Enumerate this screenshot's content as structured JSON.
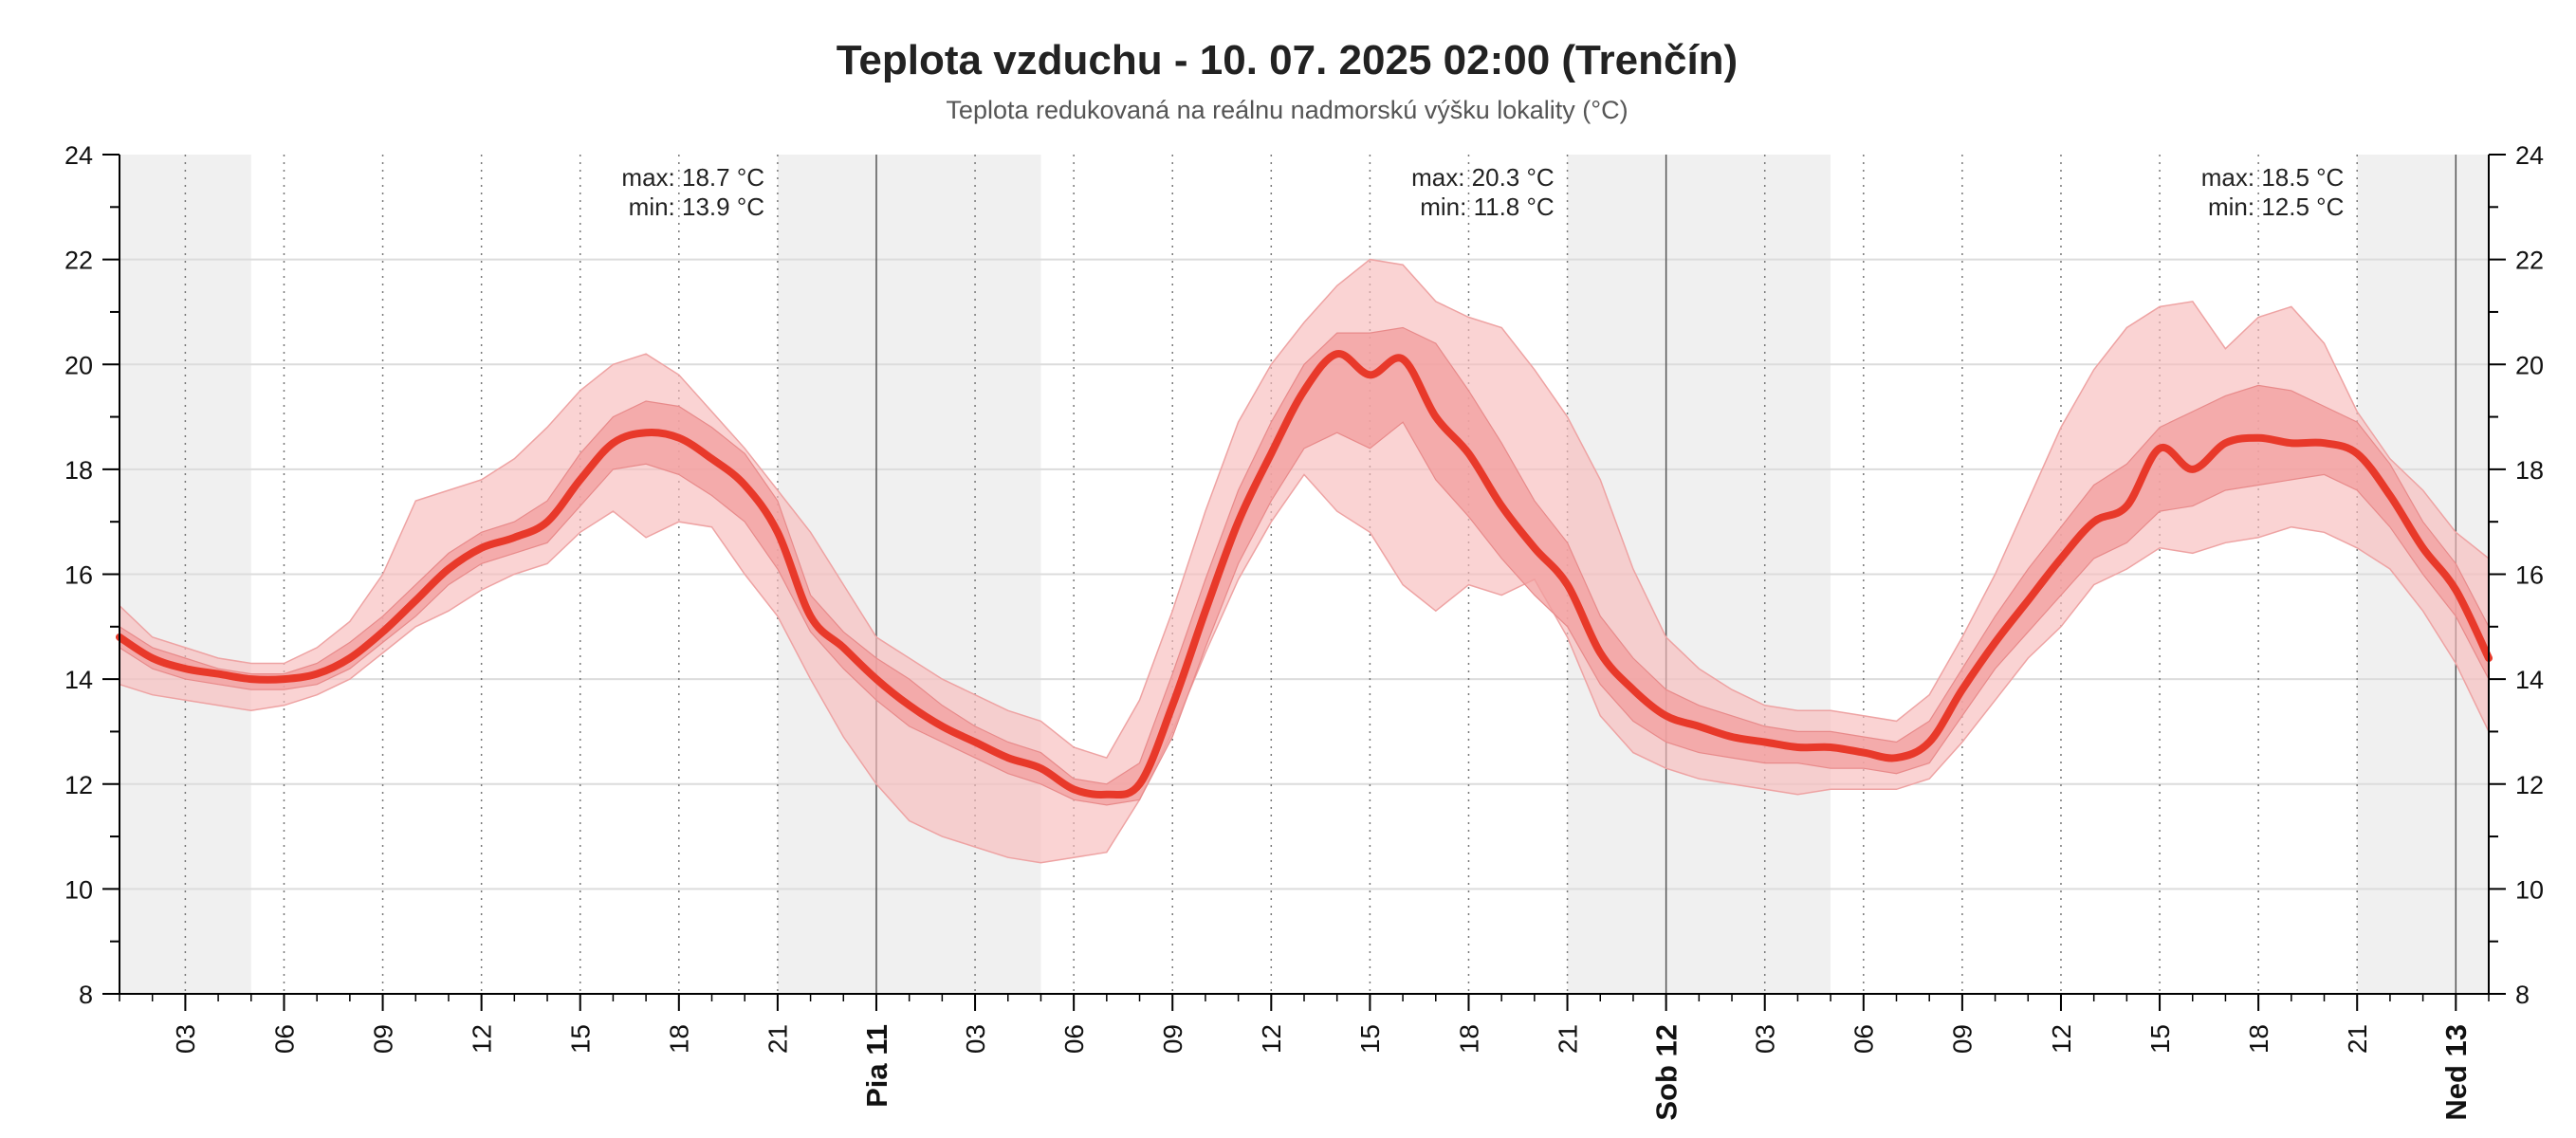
{
  "chart_data": {
    "type": "area",
    "title": "Teplota vzduchu - 10. 07. 2025 02:00 (Trenčín)",
    "subtitle": "Teplota redukovaná na reálnu nadmorskú výšku lokality (°C)",
    "xlabel": "",
    "ylabel": "°C",
    "xlim_hours": [
      1,
      73
    ],
    "ylim": [
      8,
      24
    ],
    "y_ticks": [
      8,
      10,
      12,
      14,
      16,
      18,
      20,
      22,
      24
    ],
    "grid": true,
    "x_tick_labels": [
      {
        "h": 3,
        "label": "03"
      },
      {
        "h": 6,
        "label": "06"
      },
      {
        "h": 9,
        "label": "09"
      },
      {
        "h": 12,
        "label": "12"
      },
      {
        "h": 15,
        "label": "15"
      },
      {
        "h": 18,
        "label": "18"
      },
      {
        "h": 21,
        "label": "21"
      },
      {
        "h": 24,
        "label": "Pia 11",
        "day": true
      },
      {
        "h": 27,
        "label": "03"
      },
      {
        "h": 30,
        "label": "06"
      },
      {
        "h": 33,
        "label": "09"
      },
      {
        "h": 36,
        "label": "12"
      },
      {
        "h": 39,
        "label": "15"
      },
      {
        "h": 42,
        "label": "18"
      },
      {
        "h": 45,
        "label": "21"
      },
      {
        "h": 48,
        "label": "Sob 12",
        "day": true
      },
      {
        "h": 51,
        "label": "03"
      },
      {
        "h": 54,
        "label": "06"
      },
      {
        "h": 57,
        "label": "09"
      },
      {
        "h": 60,
        "label": "12"
      },
      {
        "h": 63,
        "label": "15"
      },
      {
        "h": 66,
        "label": "18"
      },
      {
        "h": 69,
        "label": "21"
      },
      {
        "h": 72,
        "label": "Ned 13",
        "day": true
      }
    ],
    "night_shading_hours": [
      [
        1,
        5
      ],
      [
        21,
        29
      ],
      [
        45,
        53
      ],
      [
        69,
        73
      ]
    ],
    "daily_annotations": [
      {
        "h": 20.6,
        "max": "max: 18.7 °C",
        "min": "min: 13.9 °C"
      },
      {
        "h": 44.6,
        "max": "max: 20.3 °C",
        "min": "min: 11.8 °C"
      },
      {
        "h": 68.6,
        "max": "max: 18.5 °C",
        "min": "min: 12.5 °C"
      }
    ],
    "colors": {
      "line": "#e8392a",
      "inner_band": "#f29d9d",
      "outer_band": "#f7bcbc",
      "night": "#f0f0f0",
      "grid": "#dcdcdc",
      "axis": "#000000"
    },
    "hours": [
      1,
      2,
      3,
      4,
      5,
      6,
      7,
      8,
      9,
      10,
      11,
      12,
      13,
      14,
      15,
      16,
      17,
      18,
      19,
      20,
      21,
      22,
      23,
      24,
      25,
      26,
      27,
      28,
      29,
      30,
      31,
      32,
      33,
      34,
      35,
      36,
      37,
      38,
      39,
      40,
      41,
      42,
      43,
      44,
      45,
      46,
      47,
      48,
      49,
      50,
      51,
      52,
      53,
      54,
      55,
      56,
      57,
      58,
      59,
      60,
      61,
      62,
      63,
      64,
      65,
      66,
      67,
      68,
      69,
      70,
      71,
      72,
      73
    ],
    "series": [
      {
        "name": "median",
        "values": [
          14.8,
          14.4,
          14.2,
          14.1,
          14.0,
          14.0,
          14.1,
          14.4,
          14.9,
          15.5,
          16.1,
          16.5,
          16.7,
          17.0,
          17.8,
          18.5,
          18.7,
          18.6,
          18.2,
          17.7,
          16.8,
          15.2,
          14.6,
          14.0,
          13.5,
          13.1,
          12.8,
          12.5,
          12.3,
          11.9,
          11.8,
          12.0,
          13.5,
          15.3,
          17.0,
          18.3,
          19.5,
          20.2,
          19.8,
          20.1,
          19.0,
          18.3,
          17.3,
          16.5,
          15.8,
          14.5,
          13.8,
          13.3,
          13.1,
          12.9,
          12.8,
          12.7,
          12.7,
          12.6,
          12.5,
          12.8,
          13.8,
          14.7,
          15.5,
          16.3,
          17.0,
          17.3,
          18.4,
          18.0,
          18.5,
          18.6,
          18.5,
          18.5,
          18.3,
          17.5,
          16.5,
          15.7,
          14.4
        ]
      },
      {
        "name": "inner_low",
        "values": [
          14.6,
          14.2,
          14.0,
          13.9,
          13.8,
          13.8,
          13.9,
          14.2,
          14.7,
          15.2,
          15.8,
          16.2,
          16.4,
          16.6,
          17.3,
          18.0,
          18.1,
          17.9,
          17.5,
          17.0,
          16.1,
          14.9,
          14.2,
          13.6,
          13.1,
          12.8,
          12.5,
          12.2,
          12.0,
          11.7,
          11.6,
          11.7,
          12.9,
          14.6,
          16.2,
          17.4,
          18.4,
          18.7,
          18.4,
          18.9,
          17.8,
          17.1,
          16.3,
          15.6,
          15.0,
          13.9,
          13.2,
          12.8,
          12.6,
          12.5,
          12.4,
          12.4,
          12.3,
          12.3,
          12.2,
          12.4,
          13.3,
          14.2,
          14.9,
          15.6,
          16.3,
          16.6,
          17.2,
          17.3,
          17.6,
          17.7,
          17.8,
          17.9,
          17.6,
          16.9,
          16.0,
          15.2,
          14.0
        ]
      },
      {
        "name": "inner_high",
        "values": [
          15.0,
          14.6,
          14.4,
          14.2,
          14.1,
          14.1,
          14.3,
          14.7,
          15.2,
          15.8,
          16.4,
          16.8,
          17.0,
          17.4,
          18.3,
          19.0,
          19.3,
          19.2,
          18.8,
          18.3,
          17.4,
          15.6,
          14.9,
          14.4,
          14.0,
          13.5,
          13.1,
          12.8,
          12.6,
          12.1,
          12.0,
          12.4,
          14.1,
          15.9,
          17.6,
          18.9,
          20.0,
          20.6,
          20.6,
          20.7,
          20.4,
          19.5,
          18.5,
          17.4,
          16.6,
          15.2,
          14.4,
          13.8,
          13.5,
          13.3,
          13.1,
          13.0,
          13.0,
          12.9,
          12.8,
          13.2,
          14.2,
          15.2,
          16.1,
          16.9,
          17.7,
          18.1,
          18.8,
          19.1,
          19.4,
          19.6,
          19.5,
          19.2,
          18.9,
          18.1,
          17.0,
          16.2,
          15.0
        ]
      },
      {
        "name": "outer_low",
        "values": [
          13.9,
          13.7,
          13.6,
          13.5,
          13.4,
          13.5,
          13.7,
          14.0,
          14.5,
          15.0,
          15.3,
          15.7,
          16.0,
          16.2,
          16.8,
          17.2,
          16.7,
          17.0,
          16.9,
          16.0,
          15.2,
          14.0,
          12.9,
          12.0,
          11.3,
          11.0,
          10.8,
          10.6,
          10.5,
          10.6,
          10.7,
          11.7,
          13.0,
          14.5,
          15.9,
          17.0,
          17.9,
          17.2,
          16.8,
          15.8,
          15.3,
          15.8,
          15.6,
          15.9,
          14.8,
          13.3,
          12.6,
          12.3,
          12.1,
          12.0,
          11.9,
          11.8,
          11.9,
          11.9,
          11.9,
          12.1,
          12.8,
          13.6,
          14.4,
          15.0,
          15.8,
          16.1,
          16.5,
          16.4,
          16.6,
          16.7,
          16.9,
          16.8,
          16.5,
          16.1,
          15.3,
          14.3,
          13.0
        ]
      },
      {
        "name": "outer_high",
        "values": [
          15.4,
          14.8,
          14.6,
          14.4,
          14.3,
          14.3,
          14.6,
          15.1,
          16.0,
          17.4,
          17.6,
          17.8,
          18.2,
          18.8,
          19.5,
          20.0,
          20.2,
          19.8,
          19.1,
          18.4,
          17.6,
          16.8,
          15.8,
          14.8,
          14.4,
          14.0,
          13.7,
          13.4,
          13.2,
          12.7,
          12.5,
          13.6,
          15.3,
          17.2,
          18.9,
          20.0,
          20.8,
          21.5,
          22.0,
          21.9,
          21.2,
          20.9,
          20.7,
          19.9,
          19.0,
          17.8,
          16.1,
          14.8,
          14.2,
          13.8,
          13.5,
          13.4,
          13.4,
          13.3,
          13.2,
          13.7,
          14.8,
          16.0,
          17.4,
          18.8,
          19.9,
          20.7,
          21.1,
          21.2,
          20.3,
          20.9,
          21.1,
          20.4,
          19.1,
          18.2,
          17.6,
          16.8,
          16.3
        ]
      }
    ]
  }
}
